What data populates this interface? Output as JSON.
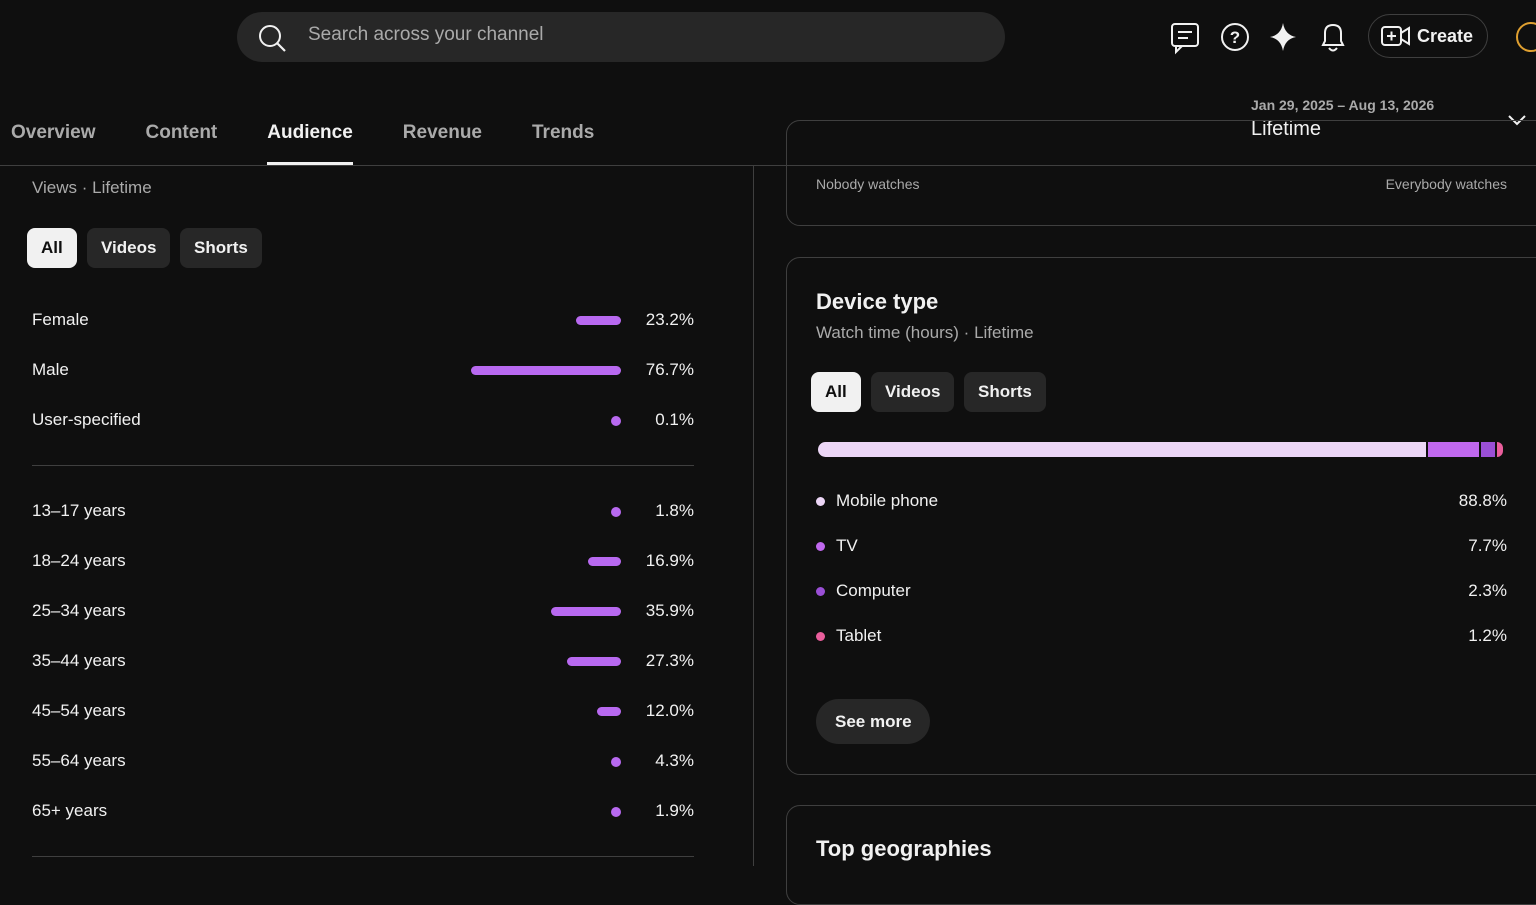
{
  "header": {
    "search_placeholder": "Search across your channel",
    "create_label": "Create",
    "tabs": [
      "Overview",
      "Content",
      "Audience",
      "Revenue",
      "Trends"
    ],
    "active_tab": 2,
    "date_range": "Jan 29, 2025 – Aug 13, 2026",
    "period": "Lifetime"
  },
  "demographics": {
    "subtitle": "Views · Lifetime",
    "filters": [
      "All",
      "Videos",
      "Shorts"
    ],
    "gender": [
      {
        "name": "Female",
        "value": 23.2,
        "label": "23.2%"
      },
      {
        "name": "Male",
        "value": 76.7,
        "label": "76.7%"
      },
      {
        "name": "User-specified",
        "value": 0.1,
        "label": "0.1%"
      }
    ],
    "age": [
      {
        "name": "13–17 years",
        "value": 1.8,
        "label": "1.8%"
      },
      {
        "name": "18–24 years",
        "value": 16.9,
        "label": "16.9%"
      },
      {
        "name": "25–34 years",
        "value": 35.9,
        "label": "35.9%"
      },
      {
        "name": "35–44 years",
        "value": 27.3,
        "label": "27.3%"
      },
      {
        "name": "45–54 years",
        "value": 12.0,
        "label": "12.0%"
      },
      {
        "name": "55–64 years",
        "value": 4.3,
        "label": "4.3%"
      },
      {
        "name": "65+ years",
        "value": 1.9,
        "label": "1.9%"
      }
    ]
  },
  "retention": {
    "low_label": "Nobody watches",
    "high_label": "Everybody watches"
  },
  "device_type": {
    "title": "Device type",
    "subtitle": "Watch time (hours) · Lifetime",
    "filters": [
      "All",
      "Videos",
      "Shorts"
    ],
    "items": [
      {
        "name": "Mobile phone",
        "value": 88.8,
        "label": "88.8%",
        "color": "#ecd6f6"
      },
      {
        "name": "TV",
        "value": 7.7,
        "label": "7.7%",
        "color": "#c068ee"
      },
      {
        "name": "Computer",
        "value": 2.3,
        "label": "2.3%",
        "color": "#9a4fd6"
      },
      {
        "name": "Tablet",
        "value": 1.2,
        "label": "1.2%",
        "color": "#ea5e9c"
      }
    ],
    "see_more": "See more"
  },
  "geographies": {
    "title": "Top geographies"
  }
}
